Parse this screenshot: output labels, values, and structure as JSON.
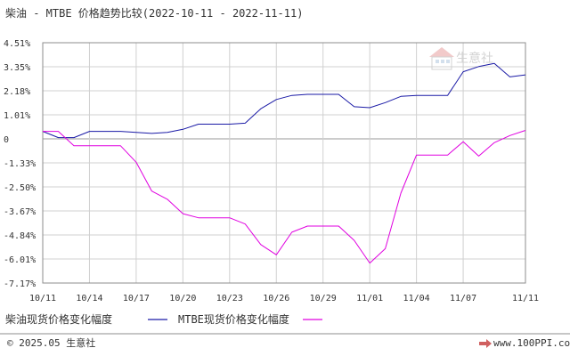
{
  "header": {
    "title": "柴油 - MTBE 价格趋势比较(2022-10-11 - 2022-11-11)"
  },
  "watermark": {
    "text": "生意社"
  },
  "footer": {
    "copyright": "© 2025.05 生意社",
    "url": "www.100PPI.com"
  },
  "colors": {
    "series_diesel": "#1a1aa6",
    "series_mtbe": "#e000e0",
    "frame": "#8c8c8c",
    "grid": "#d0d0d0"
  },
  "chart_data": {
    "type": "line",
    "title": "柴油 - MTBE 价格趋势比较(2022-10-11 - 2022-11-11)",
    "xlabel": "",
    "ylabel": "",
    "y_tick_labels": [
      "4.51%",
      "3.35%",
      "2.18%",
      "1.01%",
      "0",
      "-1.33%",
      "-2.50%",
      "-3.67%",
      "-4.84%",
      "-6.01%",
      "-7.17%"
    ],
    "ylim": [
      -7.17,
      4.51
    ],
    "x_tick_labels": [
      "10/11",
      "10/14",
      "10/17",
      "10/20",
      "10/23",
      "10/26",
      "10/29",
      "11/01",
      "11/04",
      "11/07",
      "11/11"
    ],
    "x": [
      "10/11",
      "10/12",
      "10/13",
      "10/14",
      "10/15",
      "10/16",
      "10/17",
      "10/18",
      "10/19",
      "10/20",
      "10/21",
      "10/22",
      "10/23",
      "10/24",
      "10/25",
      "10/26",
      "10/27",
      "10/28",
      "10/29",
      "10/30",
      "10/31",
      "11/01",
      "11/02",
      "11/03",
      "11/04",
      "11/05",
      "11/06",
      "11/07",
      "11/08",
      "11/09",
      "11/10",
      "11/11"
    ],
    "series": [
      {
        "name": "柴油现货价格变化幅度",
        "values": [
          0.2,
          -0.1,
          -0.1,
          0.2,
          0.2,
          0.2,
          0.15,
          0.1,
          0.15,
          0.3,
          0.55,
          0.55,
          0.55,
          0.6,
          1.3,
          1.75,
          1.95,
          2.0,
          2.0,
          2.0,
          1.4,
          1.35,
          1.6,
          1.9,
          1.95,
          1.95,
          1.95,
          3.1,
          3.35,
          3.5,
          2.85,
          2.95
        ]
      },
      {
        "name": "MTBE现货价格变化幅度",
        "values": [
          0.2,
          0.2,
          -0.5,
          -0.5,
          -0.5,
          -0.5,
          -1.3,
          -2.7,
          -3.1,
          -3.8,
          -4.0,
          -4.0,
          -4.0,
          -4.3,
          -5.3,
          -5.8,
          -4.7,
          -4.4,
          -4.4,
          -4.4,
          -5.1,
          -6.2,
          -5.5,
          -2.8,
          -0.95,
          -0.95,
          -0.95,
          -0.3,
          -1.0,
          -0.35,
          0.0,
          0.25
        ]
      }
    ],
    "legend": "bottom-left",
    "grid": true
  }
}
